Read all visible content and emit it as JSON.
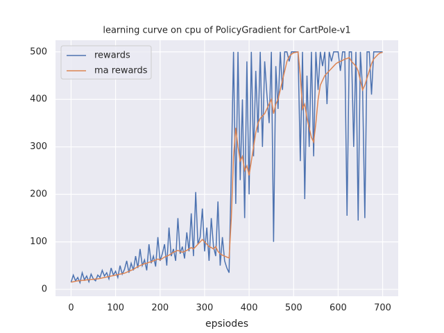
{
  "chart_data": {
    "type": "line",
    "title": "learning curve on cpu of PolicyGradient for CartPole-v1",
    "x_label": "epsiodes",
    "x": [
      0,
      5,
      10,
      15,
      20,
      25,
      30,
      35,
      40,
      45,
      50,
      55,
      60,
      65,
      70,
      75,
      80,
      85,
      90,
      95,
      100,
      105,
      110,
      115,
      120,
      125,
      130,
      135,
      140,
      145,
      150,
      155,
      160,
      165,
      170,
      175,
      180,
      185,
      190,
      195,
      200,
      205,
      210,
      215,
      220,
      225,
      230,
      235,
      240,
      245,
      250,
      255,
      260,
      265,
      270,
      275,
      280,
      285,
      290,
      295,
      300,
      305,
      310,
      315,
      320,
      325,
      330,
      335,
      340,
      345,
      350,
      355,
      360,
      365,
      370,
      375,
      380,
      385,
      390,
      395,
      400,
      405,
      410,
      415,
      420,
      425,
      430,
      435,
      440,
      445,
      450,
      455,
      460,
      465,
      470,
      475,
      480,
      485,
      490,
      495,
      500,
      505,
      510,
      515,
      520,
      525,
      530,
      535,
      540,
      545,
      550,
      555,
      560,
      565,
      570,
      575,
      580,
      585,
      590,
      595,
      600,
      605,
      610,
      615,
      620,
      625,
      630,
      635,
      640,
      645,
      650,
      655,
      660,
      665,
      670,
      675,
      680,
      685,
      690,
      695,
      700
    ],
    "series": [
      {
        "name": "rewards",
        "color": "#4c72b0",
        "values": [
          15,
          30,
          18,
          25,
          14,
          35,
          20,
          28,
          16,
          32,
          22,
          18,
          30,
          25,
          40,
          28,
          35,
          22,
          45,
          30,
          38,
          25,
          50,
          32,
          42,
          60,
          35,
          55,
          40,
          70,
          45,
          85,
          50,
          62,
          40,
          95,
          55,
          70,
          48,
          110,
          60,
          75,
          95,
          50,
          130,
          70,
          85,
          60,
          150,
          75,
          90,
          65,
          120,
          80,
          160,
          70,
          205,
          95,
          110,
          170,
          80,
          130,
          60,
          150,
          90,
          70,
          185,
          50,
          110,
          60,
          45,
          35,
          250,
          500,
          180,
          500,
          230,
          400,
          150,
          480,
          200,
          500,
          280,
          460,
          330,
          500,
          300,
          480,
          410,
          350,
          500,
          100,
          470,
          380,
          500,
          420,
          500,
          500,
          480,
          500,
          500,
          500,
          500,
          270,
          500,
          190,
          450,
          300,
          500,
          280,
          500,
          420,
          500,
          470,
          500,
          390,
          500,
          480,
          500,
          500,
          500,
          460,
          500,
          500,
          155,
          500,
          500,
          300,
          500,
          145,
          500,
          420,
          150,
          500,
          500,
          410,
          500,
          500,
          500,
          500,
          500
        ]
      },
      {
        "name": "ma rewards",
        "color": "#dd8452",
        "values": [
          15,
          16,
          17,
          18,
          18,
          19,
          19,
          20,
          20,
          21,
          21,
          22,
          22,
          23,
          24,
          25,
          26,
          27,
          28,
          29,
          30,
          31,
          32,
          33,
          34,
          36,
          38,
          40,
          42,
          45,
          48,
          50,
          52,
          54,
          55,
          57,
          58,
          60,
          62,
          64,
          62,
          65,
          68,
          70,
          72,
          75,
          78,
          80,
          82,
          80,
          78,
          80,
          82,
          85,
          88,
          85,
          90,
          95,
          100,
          105,
          100,
          95,
          90,
          88,
          85,
          90,
          80,
          75,
          72,
          70,
          68,
          66,
          150,
          280,
          340,
          300,
          270,
          280,
          250,
          260,
          240,
          270,
          300,
          330,
          350,
          360,
          365,
          370,
          380,
          390,
          400,
          370,
          390,
          400,
          420,
          440,
          460,
          480,
          490,
          495,
          498,
          499,
          500,
          450,
          380,
          390,
          360,
          340,
          320,
          310,
          350,
          400,
          430,
          440,
          450,
          455,
          460,
          465,
          470,
          475,
          478,
          480,
          482,
          485,
          486,
          488,
          480,
          475,
          470,
          460,
          440,
          420,
          430,
          445,
          460,
          475,
          485,
          490,
          495,
          498,
          499
        ]
      }
    ],
    "xlim": [
      -35,
      735
    ],
    "ylim": [
      -14.5,
      524.5
    ],
    "xticks": [
      0,
      100,
      200,
      300,
      400,
      500,
      600,
      700
    ],
    "yticks": [
      0,
      100,
      200,
      300,
      400,
      500
    ],
    "grid": true,
    "legend": "upper-left"
  }
}
